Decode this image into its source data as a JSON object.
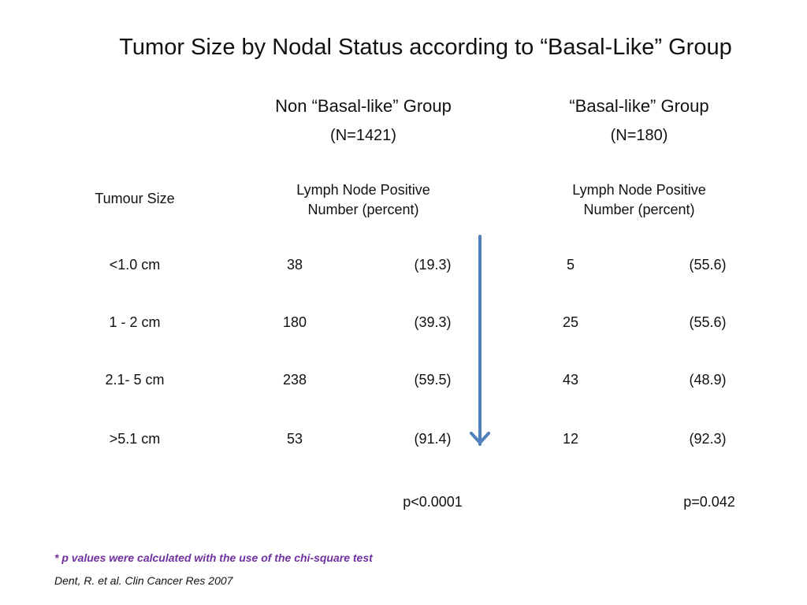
{
  "title": "Tumor Size by Nodal Status according to “Basal-Like” Group",
  "groups": [
    {
      "label": "Non “Basal-like” Group",
      "n": "(N=1421)"
    },
    {
      "label": "“Basal-like” Group",
      "n": "(N=180)"
    }
  ],
  "row_header": "Tumour Size",
  "col_header_line1": "Lymph Node Positive",
  "col_header_line2": "Number (percent)",
  "rows": [
    {
      "size": "<1.0 cm",
      "g1_num": "38",
      "g1_pct": "(19.3)",
      "g2_num": "5",
      "g2_pct": "(55.6)"
    },
    {
      "size": "1 - 2 cm",
      "g1_num": "180",
      "g1_pct": "(39.3)",
      "g2_num": "25",
      "g2_pct": "(55.6)"
    },
    {
      "size": "2.1- 5 cm",
      "g1_num": "238",
      "g1_pct": "(59.5)",
      "g2_num": "43",
      "g2_pct": "(48.9)"
    },
    {
      "size": ">5.1 cm",
      "g1_num": "53",
      "g1_pct": "(91.4)",
      "g2_num": "12",
      "g2_pct": "(92.3)"
    }
  ],
  "p_values": [
    "p<0.0001",
    "p=0.042"
  ],
  "footnote": "* p values were calculated with the use of the chi-square test",
  "citation": "Dent, R. et al. Clin Cancer Res 2007",
  "colors": {
    "footnote": "#7030a0",
    "arrow": "#4f81bd",
    "text": "#111111"
  }
}
